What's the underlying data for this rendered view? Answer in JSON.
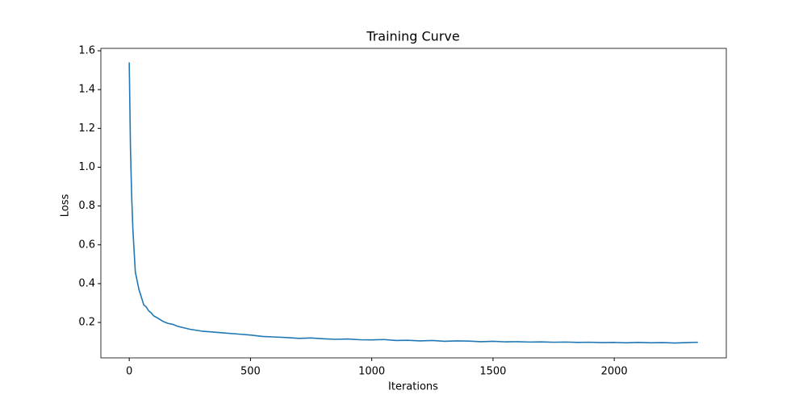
{
  "chart_data": {
    "type": "line",
    "title": "Training Curve",
    "x_label": "Iterations",
    "y_label": "Loss",
    "x": [
      0,
      5,
      10,
      15,
      20,
      25,
      30,
      40,
      50,
      60,
      70,
      80,
      90,
      100,
      120,
      140,
      160,
      180,
      200,
      250,
      300,
      350,
      400,
      450,
      500,
      550,
      600,
      650,
      700,
      750,
      800,
      850,
      900,
      950,
      1000,
      1050,
      1100,
      1150,
      1200,
      1250,
      1300,
      1350,
      1400,
      1450,
      1500,
      1550,
      1600,
      1650,
      1700,
      1750,
      1800,
      1850,
      1900,
      1950,
      2000,
      2050,
      2100,
      2150,
      2200,
      2250,
      2300,
      2345
    ],
    "series": [
      {
        "name": "Loss",
        "color": "#1f77b4",
        "values": [
          1.54,
          1.1,
          0.85,
          0.68,
          0.57,
          0.46,
          0.43,
          0.37,
          0.33,
          0.29,
          0.28,
          0.26,
          0.25,
          0.235,
          0.22,
          0.205,
          0.195,
          0.19,
          0.18,
          0.165,
          0.155,
          0.15,
          0.145,
          0.14,
          0.135,
          0.128,
          0.125,
          0.122,
          0.118,
          0.12,
          0.116,
          0.113,
          0.115,
          0.111,
          0.11,
          0.112,
          0.107,
          0.108,
          0.105,
          0.107,
          0.103,
          0.105,
          0.104,
          0.101,
          0.103,
          0.1,
          0.101,
          0.099,
          0.1,
          0.098,
          0.099,
          0.097,
          0.098,
          0.096,
          0.097,
          0.095,
          0.097,
          0.095,
          0.096,
          0.094,
          0.096,
          0.098
        ]
      }
    ],
    "xlim": [
      -117,
      2462
    ],
    "ylim": [
      0.0175,
      1.6125
    ],
    "xticks": [
      0,
      500,
      1000,
      1500,
      2000
    ],
    "yticks": [
      0.2,
      0.4,
      0.6,
      0.8,
      {
        "value": 1,
        "label": "1.0"
      },
      1.2,
      1.4,
      1.6
    ],
    "grid": false
  }
}
